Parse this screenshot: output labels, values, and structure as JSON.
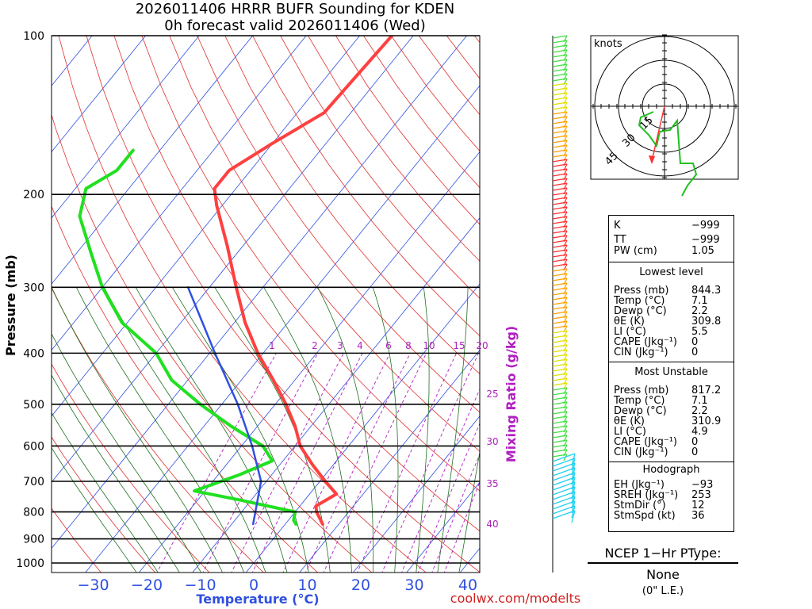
{
  "title": {
    "line1": "2026011406 HRRR BUFR Sounding for KDEN",
    "line2": "0h forecast valid 2026011406 (Wed)"
  },
  "axes": {
    "y_label": "Pressure (mb)",
    "x_label": "Temperature (°C)",
    "mixing_label": "Mixing Ratio (g/kg)",
    "pressure_ticks": [
      "100",
      "200",
      "300",
      "400",
      "500",
      "600",
      "700",
      "800",
      "900",
      "1000"
    ],
    "temp_ticks": [
      "−30",
      "−20",
      "−10",
      "0",
      "10",
      "20",
      "30",
      "40"
    ],
    "mixing_ticks_top": [
      "1",
      "2",
      "3",
      "4",
      "6",
      "8",
      "10",
      "15",
      "20"
    ],
    "mixing_ticks_side": [
      "25",
      "30",
      "35",
      "40"
    ]
  },
  "chart_data": {
    "type": "line",
    "chart": "skew-T log-P sounding",
    "pressure_range_mb": [
      100,
      1050
    ],
    "temperature_range_c": [
      -40,
      40
    ],
    "series": [
      {
        "name": "Temperature",
        "color": "#ff4040",
        "points": [
          {
            "p": 100,
            "t": -54
          },
          {
            "p": 140,
            "t": -55
          },
          {
            "p": 160,
            "t": -60
          },
          {
            "p": 180,
            "t": -64
          },
          {
            "p": 195,
            "t": -64
          },
          {
            "p": 210,
            "t": -61
          },
          {
            "p": 250,
            "t": -53
          },
          {
            "p": 300,
            "t": -45
          },
          {
            "p": 350,
            "t": -38
          },
          {
            "p": 400,
            "t": -31
          },
          {
            "p": 450,
            "t": -24
          },
          {
            "p": 500,
            "t": -18
          },
          {
            "p": 550,
            "t": -13
          },
          {
            "p": 600,
            "t": -9
          },
          {
            "p": 650,
            "t": -4
          },
          {
            "p": 700,
            "t": 1
          },
          {
            "p": 740,
            "t": 5
          },
          {
            "p": 780,
            "t": 3
          },
          {
            "p": 800,
            "t": 4
          },
          {
            "p": 844,
            "t": 7
          }
        ]
      },
      {
        "name": "Dewpoint",
        "color": "#20e020",
        "points": [
          {
            "p": 165,
            "t": -85
          },
          {
            "p": 180,
            "t": -85
          },
          {
            "p": 195,
            "t": -88
          },
          {
            "p": 220,
            "t": -85
          },
          {
            "p": 260,
            "t": -77
          },
          {
            "p": 300,
            "t": -70
          },
          {
            "p": 350,
            "t": -61
          },
          {
            "p": 400,
            "t": -50
          },
          {
            "p": 450,
            "t": -43
          },
          {
            "p": 500,
            "t": -34
          },
          {
            "p": 550,
            "t": -25
          },
          {
            "p": 600,
            "t": -16
          },
          {
            "p": 640,
            "t": -12
          },
          {
            "p": 680,
            "t": -16
          },
          {
            "p": 730,
            "t": -22
          },
          {
            "p": 760,
            "t": -12
          },
          {
            "p": 800,
            "t": 0
          },
          {
            "p": 830,
            "t": 1
          },
          {
            "p": 844,
            "t": 2
          }
        ]
      },
      {
        "name": "Parcel",
        "color": "#3050e0",
        "points": [
          {
            "p": 844,
            "t": -6
          },
          {
            "p": 700,
            "t": -11
          },
          {
            "p": 600,
            "t": -18
          },
          {
            "p": 500,
            "t": -27
          },
          {
            "p": 400,
            "t": -39
          },
          {
            "p": 300,
            "t": -54
          }
        ]
      }
    ],
    "hodograph": {
      "label": "knots",
      "ring_labels": [
        "15",
        "30",
        "45"
      ]
    },
    "wind_profile": "color-coded wind barbs from 1000 mb to 100 mb"
  },
  "indices": {
    "k_label": "K",
    "k_value": "−999",
    "tt_label": "TT",
    "tt_value": "−999",
    "pw_label": "PW (cm)",
    "pw_value": "1.05",
    "lowest_header": "Lowest level",
    "lowest": [
      {
        "label": "Press (mb)",
        "value": "844.3"
      },
      {
        "label": "Temp (°C)",
        "value": "7.1"
      },
      {
        "label": "Dewp (°C)",
        "value": "2.2"
      },
      {
        "label": "θE (K)",
        "value": "309.8"
      },
      {
        "label": "LI (°C)",
        "value": "5.5"
      },
      {
        "label": "CAPE (Jkg⁻¹)",
        "value": "0"
      },
      {
        "label": "CIN (Jkg⁻¹)",
        "value": "0"
      }
    ],
    "mu_header": "Most Unstable",
    "mu": [
      {
        "label": "Press (mb)",
        "value": "817.2"
      },
      {
        "label": "Temp (°C)",
        "value": "7.1"
      },
      {
        "label": "Dewp (°C)",
        "value": "2.2"
      },
      {
        "label": "θE (K)",
        "value": "310.9"
      },
      {
        "label": "LI (°C)",
        "value": "4.9"
      },
      {
        "label": "CAPE (Jkg⁻¹)",
        "value": "0"
      },
      {
        "label": "CIN (Jkg⁻¹)",
        "value": "0"
      }
    ],
    "hodo_header": "Hodograph",
    "hodo": [
      {
        "label": "EH (Jkg⁻¹)",
        "value": "−93"
      },
      {
        "label": "SREH (Jkg⁻¹)",
        "value": "253"
      },
      {
        "label": "StmDir (°)",
        "value": "12"
      },
      {
        "label": "StmSpd (kt)",
        "value": "36"
      }
    ]
  },
  "ptype": {
    "title": "NCEP 1−Hr PType:",
    "value": "None",
    "note": "(0\" L.E.)"
  },
  "credit": "coolwx.com/modelts",
  "colors": {
    "temp": "#ff4040",
    "dewp": "#20e020",
    "parcel": "#3050e0",
    "isotherm": "#3050e0",
    "dry_adiabat": "#e03030",
    "moist_adiabat": "#207020",
    "mixing": "#b020c0"
  }
}
